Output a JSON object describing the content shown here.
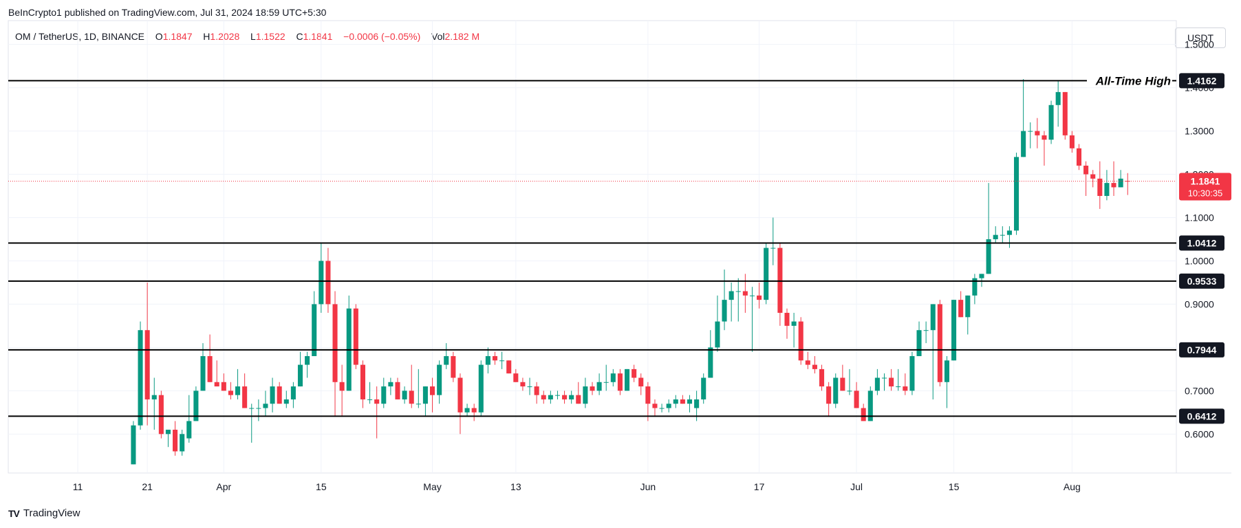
{
  "header": {
    "publisher": "BeInCrypto1 published on TradingView.com, Jul 31, 2024 18:59 UTC+5:30"
  },
  "legend": {
    "symbol": "OM / TetherUS, 1D, BINANCE",
    "o_label": "O",
    "o_value": "1.1847",
    "h_label": "H",
    "h_value": "1.2028",
    "l_label": "L",
    "l_value": "1.1522",
    "c_label": "C",
    "c_value": "1.1841",
    "change": "−0.0006 (−0.05%)",
    "vol_label": "Vol",
    "vol_value": "2.182 M"
  },
  "currency_button": "USDT",
  "footer": {
    "brand": "TradingView",
    "logo": "TV"
  },
  "colors": {
    "up": "#089981",
    "down": "#f23645",
    "level_line": "#000000",
    "grid": "#f0f3fa",
    "axis_text": "#131722",
    "label_bg": "#131722",
    "last_price_bg": "#f23645"
  },
  "chart_data": {
    "type": "candlestick",
    "y_ticks": [
      "1.5000",
      "1.4000",
      "1.3000",
      "1.2000",
      "1.1000",
      "1.0000",
      "0.9000",
      "0.8000",
      "0.7000",
      "0.6000"
    ],
    "x_ticks": [
      {
        "label": "11",
        "date": "2024-03-11"
      },
      {
        "label": "21",
        "date": "2024-03-21"
      },
      {
        "label": "Apr",
        "date": "2024-04-01"
      },
      {
        "label": "15",
        "date": "2024-04-15"
      },
      {
        "label": "May",
        "date": "2024-05-01"
      },
      {
        "label": "13",
        "date": "2024-05-13"
      },
      {
        "label": "Jun",
        "date": "2024-06-01"
      },
      {
        "label": "17",
        "date": "2024-06-17"
      },
      {
        "label": "Jul",
        "date": "2024-07-01"
      },
      {
        "label": "15",
        "date": "2024-07-15"
      },
      {
        "label": "Aug",
        "date": "2024-08-01"
      }
    ],
    "x_range": [
      "2024-03-01",
      "2024-08-16"
    ],
    "y_range": [
      0.51,
      1.555
    ],
    "levels": [
      {
        "value": 1.4162,
        "label": "1.4162",
        "annotation": "All-Time High"
      },
      {
        "value": 1.0412,
        "label": "1.0412"
      },
      {
        "value": 0.9533,
        "label": "0.9533"
      },
      {
        "value": 0.7944,
        "label": "0.7944"
      },
      {
        "value": 0.6412,
        "label": "0.6412"
      }
    ],
    "last_price": {
      "value": 1.1841,
      "label": "1.1841",
      "countdown": "10:30:35"
    },
    "candles": [
      {
        "d": "2024-03-19",
        "o": 0.53,
        "h": 0.63,
        "l": 0.53,
        "c": 0.62
      },
      {
        "d": "2024-03-20",
        "o": 0.62,
        "h": 0.86,
        "l": 0.61,
        "c": 0.84
      },
      {
        "d": "2024-03-21",
        "o": 0.84,
        "h": 0.95,
        "l": 0.62,
        "c": 0.68
      },
      {
        "d": "2024-03-22",
        "o": 0.68,
        "h": 0.73,
        "l": 0.61,
        "c": 0.69
      },
      {
        "d": "2024-03-23",
        "o": 0.69,
        "h": 0.7,
        "l": 0.59,
        "c": 0.6
      },
      {
        "d": "2024-03-24",
        "o": 0.6,
        "h": 0.61,
        "l": 0.57,
        "c": 0.61
      },
      {
        "d": "2024-03-25",
        "o": 0.61,
        "h": 0.63,
        "l": 0.55,
        "c": 0.56
      },
      {
        "d": "2024-03-26",
        "o": 0.56,
        "h": 0.61,
        "l": 0.55,
        "c": 0.6
      },
      {
        "d": "2024-03-27",
        "o": 0.59,
        "h": 0.69,
        "l": 0.58,
        "c": 0.63
      },
      {
        "d": "2024-03-28",
        "o": 0.63,
        "h": 0.71,
        "l": 0.63,
        "c": 0.7
      },
      {
        "d": "2024-03-29",
        "o": 0.7,
        "h": 0.81,
        "l": 0.7,
        "c": 0.78
      },
      {
        "d": "2024-03-30",
        "o": 0.78,
        "h": 0.83,
        "l": 0.72,
        "c": 0.72
      },
      {
        "d": "2024-03-31",
        "o": 0.72,
        "h": 0.77,
        "l": 0.71,
        "c": 0.71
      },
      {
        "d": "2024-04-01",
        "o": 0.72,
        "h": 0.74,
        "l": 0.7,
        "c": 0.7
      },
      {
        "d": "2024-04-02",
        "o": 0.7,
        "h": 0.72,
        "l": 0.68,
        "c": 0.69
      },
      {
        "d": "2024-04-03",
        "o": 0.69,
        "h": 0.75,
        "l": 0.68,
        "c": 0.71
      },
      {
        "d": "2024-04-04",
        "o": 0.71,
        "h": 0.74,
        "l": 0.66,
        "c": 0.66
      },
      {
        "d": "2024-04-05",
        "o": 0.66,
        "h": 0.67,
        "l": 0.58,
        "c": 0.66
      },
      {
        "d": "2024-04-06",
        "o": 0.66,
        "h": 0.68,
        "l": 0.63,
        "c": 0.66
      },
      {
        "d": "2024-04-07",
        "o": 0.66,
        "h": 0.7,
        "l": 0.64,
        "c": 0.67
      },
      {
        "d": "2024-04-08",
        "o": 0.67,
        "h": 0.73,
        "l": 0.65,
        "c": 0.71
      },
      {
        "d": "2024-04-09",
        "o": 0.71,
        "h": 0.72,
        "l": 0.67,
        "c": 0.67
      },
      {
        "d": "2024-04-10",
        "o": 0.67,
        "h": 0.7,
        "l": 0.66,
        "c": 0.68
      },
      {
        "d": "2024-04-11",
        "o": 0.68,
        "h": 0.72,
        "l": 0.66,
        "c": 0.71
      },
      {
        "d": "2024-04-12",
        "o": 0.71,
        "h": 0.79,
        "l": 0.71,
        "c": 0.76
      },
      {
        "d": "2024-04-13",
        "o": 0.76,
        "h": 0.79,
        "l": 0.73,
        "c": 0.78
      },
      {
        "d": "2024-04-14",
        "o": 0.78,
        "h": 0.93,
        "l": 0.78,
        "c": 0.9
      },
      {
        "d": "2024-04-15",
        "o": 0.9,
        "h": 1.04,
        "l": 0.88,
        "c": 1.0
      },
      {
        "d": "2024-04-16",
        "o": 1.0,
        "h": 1.03,
        "l": 0.88,
        "c": 0.9
      },
      {
        "d": "2024-04-17",
        "o": 0.9,
        "h": 0.93,
        "l": 0.64,
        "c": 0.72
      },
      {
        "d": "2024-04-18",
        "o": 0.72,
        "h": 0.76,
        "l": 0.64,
        "c": 0.7
      },
      {
        "d": "2024-04-19",
        "o": 0.7,
        "h": 0.92,
        "l": 0.7,
        "c": 0.89
      },
      {
        "d": "2024-04-20",
        "o": 0.89,
        "h": 0.9,
        "l": 0.75,
        "c": 0.76
      },
      {
        "d": "2024-04-21",
        "o": 0.76,
        "h": 0.77,
        "l": 0.66,
        "c": 0.68
      },
      {
        "d": "2024-04-22",
        "o": 0.68,
        "h": 0.72,
        "l": 0.67,
        "c": 0.68
      },
      {
        "d": "2024-04-23",
        "o": 0.68,
        "h": 0.71,
        "l": 0.59,
        "c": 0.67
      },
      {
        "d": "2024-04-24",
        "o": 0.67,
        "h": 0.73,
        "l": 0.66,
        "c": 0.71
      },
      {
        "d": "2024-04-25",
        "o": 0.71,
        "h": 0.73,
        "l": 0.69,
        "c": 0.72
      },
      {
        "d": "2024-04-26",
        "o": 0.72,
        "h": 0.73,
        "l": 0.68,
        "c": 0.68
      },
      {
        "d": "2024-04-27",
        "o": 0.68,
        "h": 0.71,
        "l": 0.67,
        "c": 0.7
      },
      {
        "d": "2024-04-28",
        "o": 0.7,
        "h": 0.76,
        "l": 0.66,
        "c": 0.67
      },
      {
        "d": "2024-04-29",
        "o": 0.67,
        "h": 0.75,
        "l": 0.66,
        "c": 0.67
      },
      {
        "d": "2024-04-30",
        "o": 0.67,
        "h": 0.71,
        "l": 0.64,
        "c": 0.71
      },
      {
        "d": "2024-05-01",
        "o": 0.71,
        "h": 0.73,
        "l": 0.65,
        "c": 0.69
      },
      {
        "d": "2024-05-02",
        "o": 0.69,
        "h": 0.77,
        "l": 0.67,
        "c": 0.76
      },
      {
        "d": "2024-05-03",
        "o": 0.76,
        "h": 0.81,
        "l": 0.75,
        "c": 0.78
      },
      {
        "d": "2024-05-04",
        "o": 0.78,
        "h": 0.79,
        "l": 0.72,
        "c": 0.73
      },
      {
        "d": "2024-05-05",
        "o": 0.73,
        "h": 0.74,
        "l": 0.6,
        "c": 0.65
      },
      {
        "d": "2024-05-06",
        "o": 0.65,
        "h": 0.67,
        "l": 0.64,
        "c": 0.66
      },
      {
        "d": "2024-05-07",
        "o": 0.66,
        "h": 0.67,
        "l": 0.63,
        "c": 0.65
      },
      {
        "d": "2024-05-08",
        "o": 0.65,
        "h": 0.77,
        "l": 0.64,
        "c": 0.76
      },
      {
        "d": "2024-05-09",
        "o": 0.76,
        "h": 0.8,
        "l": 0.74,
        "c": 0.78
      },
      {
        "d": "2024-05-10",
        "o": 0.78,
        "h": 0.79,
        "l": 0.76,
        "c": 0.77
      },
      {
        "d": "2024-05-11",
        "o": 0.77,
        "h": 0.79,
        "l": 0.75,
        "c": 0.77
      },
      {
        "d": "2024-05-12",
        "o": 0.77,
        "h": 0.77,
        "l": 0.74,
        "c": 0.74
      },
      {
        "d": "2024-05-13",
        "o": 0.74,
        "h": 0.75,
        "l": 0.72,
        "c": 0.72
      },
      {
        "d": "2024-05-14",
        "o": 0.72,
        "h": 0.73,
        "l": 0.7,
        "c": 0.71
      },
      {
        "d": "2024-05-15",
        "o": 0.71,
        "h": 0.73,
        "l": 0.69,
        "c": 0.71
      },
      {
        "d": "2024-05-16",
        "o": 0.71,
        "h": 0.72,
        "l": 0.67,
        "c": 0.69
      },
      {
        "d": "2024-05-17",
        "o": 0.69,
        "h": 0.7,
        "l": 0.67,
        "c": 0.68
      },
      {
        "d": "2024-05-18",
        "o": 0.68,
        "h": 0.7,
        "l": 0.67,
        "c": 0.69
      },
      {
        "d": "2024-05-19",
        "o": 0.69,
        "h": 0.7,
        "l": 0.68,
        "c": 0.69
      },
      {
        "d": "2024-05-20",
        "o": 0.69,
        "h": 0.7,
        "l": 0.67,
        "c": 0.68
      },
      {
        "d": "2024-05-21",
        "o": 0.68,
        "h": 0.7,
        "l": 0.67,
        "c": 0.69
      },
      {
        "d": "2024-05-22",
        "o": 0.69,
        "h": 0.72,
        "l": 0.67,
        "c": 0.67
      },
      {
        "d": "2024-05-23",
        "o": 0.67,
        "h": 0.73,
        "l": 0.66,
        "c": 0.71
      },
      {
        "d": "2024-05-24",
        "o": 0.71,
        "h": 0.72,
        "l": 0.69,
        "c": 0.7
      },
      {
        "d": "2024-05-25",
        "o": 0.7,
        "h": 0.74,
        "l": 0.69,
        "c": 0.72
      },
      {
        "d": "2024-05-26",
        "o": 0.72,
        "h": 0.76,
        "l": 0.7,
        "c": 0.72
      },
      {
        "d": "2024-05-27",
        "o": 0.72,
        "h": 0.75,
        "l": 0.71,
        "c": 0.74
      },
      {
        "d": "2024-05-28",
        "o": 0.74,
        "h": 0.75,
        "l": 0.69,
        "c": 0.7
      },
      {
        "d": "2024-05-29",
        "o": 0.7,
        "h": 0.75,
        "l": 0.7,
        "c": 0.75
      },
      {
        "d": "2024-05-30",
        "o": 0.75,
        "h": 0.76,
        "l": 0.72,
        "c": 0.73
      },
      {
        "d": "2024-05-31",
        "o": 0.73,
        "h": 0.74,
        "l": 0.69,
        "c": 0.71
      },
      {
        "d": "2024-06-01",
        "o": 0.71,
        "h": 0.72,
        "l": 0.63,
        "c": 0.67
      },
      {
        "d": "2024-06-02",
        "o": 0.67,
        "h": 0.68,
        "l": 0.64,
        "c": 0.66
      },
      {
        "d": "2024-06-03",
        "o": 0.66,
        "h": 0.67,
        "l": 0.65,
        "c": 0.66
      },
      {
        "d": "2024-06-04",
        "o": 0.66,
        "h": 0.68,
        "l": 0.65,
        "c": 0.67
      },
      {
        "d": "2024-06-05",
        "o": 0.67,
        "h": 0.69,
        "l": 0.66,
        "c": 0.68
      },
      {
        "d": "2024-06-06",
        "o": 0.68,
        "h": 0.69,
        "l": 0.67,
        "c": 0.67
      },
      {
        "d": "2024-06-07",
        "o": 0.67,
        "h": 0.69,
        "l": 0.65,
        "c": 0.68
      },
      {
        "d": "2024-06-08",
        "o": 0.66,
        "h": 0.7,
        "l": 0.63,
        "c": 0.68
      },
      {
        "d": "2024-06-09",
        "o": 0.68,
        "h": 0.74,
        "l": 0.67,
        "c": 0.73
      },
      {
        "d": "2024-06-10",
        "o": 0.73,
        "h": 0.84,
        "l": 0.73,
        "c": 0.8
      },
      {
        "d": "2024-06-11",
        "o": 0.8,
        "h": 0.92,
        "l": 0.79,
        "c": 0.86
      },
      {
        "d": "2024-06-12",
        "o": 0.86,
        "h": 0.98,
        "l": 0.84,
        "c": 0.91
      },
      {
        "d": "2024-06-13",
        "o": 0.91,
        "h": 0.95,
        "l": 0.86,
        "c": 0.93
      },
      {
        "d": "2024-06-14",
        "o": 0.93,
        "h": 0.96,
        "l": 0.86,
        "c": 0.93
      },
      {
        "d": "2024-06-15",
        "o": 0.93,
        "h": 0.97,
        "l": 0.88,
        "c": 0.92
      },
      {
        "d": "2024-06-16",
        "o": 0.92,
        "h": 0.94,
        "l": 0.79,
        "c": 0.92
      },
      {
        "d": "2024-06-17",
        "o": 0.92,
        "h": 0.95,
        "l": 0.89,
        "c": 0.91
      },
      {
        "d": "2024-06-18",
        "o": 0.91,
        "h": 1.04,
        "l": 0.9,
        "c": 1.03
      },
      {
        "d": "2024-06-19",
        "o": 1.03,
        "h": 1.1,
        "l": 0.99,
        "c": 1.03
      },
      {
        "d": "2024-06-20",
        "o": 1.03,
        "h": 1.04,
        "l": 0.85,
        "c": 0.88
      },
      {
        "d": "2024-06-21",
        "o": 0.88,
        "h": 0.89,
        "l": 0.82,
        "c": 0.85
      },
      {
        "d": "2024-06-22",
        "o": 0.85,
        "h": 0.88,
        "l": 0.8,
        "c": 0.86
      },
      {
        "d": "2024-06-23",
        "o": 0.86,
        "h": 0.87,
        "l": 0.76,
        "c": 0.77
      },
      {
        "d": "2024-06-24",
        "o": 0.77,
        "h": 0.79,
        "l": 0.75,
        "c": 0.76
      },
      {
        "d": "2024-06-25",
        "o": 0.76,
        "h": 0.78,
        "l": 0.74,
        "c": 0.75
      },
      {
        "d": "2024-06-26",
        "o": 0.75,
        "h": 0.76,
        "l": 0.7,
        "c": 0.71
      },
      {
        "d": "2024-06-27",
        "o": 0.71,
        "h": 0.72,
        "l": 0.64,
        "c": 0.67
      },
      {
        "d": "2024-06-28",
        "o": 0.67,
        "h": 0.74,
        "l": 0.66,
        "c": 0.73
      },
      {
        "d": "2024-06-29",
        "o": 0.73,
        "h": 0.76,
        "l": 0.7,
        "c": 0.7
      },
      {
        "d": "2024-06-30",
        "o": 0.7,
        "h": 0.75,
        "l": 0.69,
        "c": 0.7
      },
      {
        "d": "2024-07-01",
        "o": 0.7,
        "h": 0.72,
        "l": 0.66,
        "c": 0.66
      },
      {
        "d": "2024-07-02",
        "o": 0.66,
        "h": 0.67,
        "l": 0.63,
        "c": 0.63
      },
      {
        "d": "2024-07-03",
        "o": 0.63,
        "h": 0.71,
        "l": 0.63,
        "c": 0.7
      },
      {
        "d": "2024-07-04",
        "o": 0.7,
        "h": 0.75,
        "l": 0.69,
        "c": 0.73
      },
      {
        "d": "2024-07-05",
        "o": 0.73,
        "h": 0.74,
        "l": 0.7,
        "c": 0.73
      },
      {
        "d": "2024-07-06",
        "o": 0.73,
        "h": 0.75,
        "l": 0.7,
        "c": 0.71
      },
      {
        "d": "2024-07-07",
        "o": 0.71,
        "h": 0.75,
        "l": 0.7,
        "c": 0.71
      },
      {
        "d": "2024-07-08",
        "o": 0.71,
        "h": 0.74,
        "l": 0.69,
        "c": 0.7
      },
      {
        "d": "2024-07-09",
        "o": 0.7,
        "h": 0.79,
        "l": 0.69,
        "c": 0.78
      },
      {
        "d": "2024-07-10",
        "o": 0.78,
        "h": 0.86,
        "l": 0.78,
        "c": 0.84
      },
      {
        "d": "2024-07-11",
        "o": 0.84,
        "h": 0.86,
        "l": 0.81,
        "c": 0.84
      },
      {
        "d": "2024-07-12",
        "o": 0.84,
        "h": 0.9,
        "l": 0.68,
        "c": 0.9
      },
      {
        "d": "2024-07-13",
        "o": 0.9,
        "h": 0.91,
        "l": 0.71,
        "c": 0.72
      },
      {
        "d": "2024-07-14",
        "o": 0.72,
        "h": 0.78,
        "l": 0.66,
        "c": 0.77
      },
      {
        "d": "2024-07-15",
        "o": 0.77,
        "h": 0.91,
        "l": 0.77,
        "c": 0.91
      },
      {
        "d": "2024-07-16",
        "o": 0.91,
        "h": 0.93,
        "l": 0.87,
        "c": 0.87
      },
      {
        "d": "2024-07-17",
        "o": 0.87,
        "h": 0.92,
        "l": 0.83,
        "c": 0.92
      },
      {
        "d": "2024-07-18",
        "o": 0.92,
        "h": 0.97,
        "l": 0.9,
        "c": 0.96
      },
      {
        "d": "2024-07-19",
        "o": 0.96,
        "h": 0.97,
        "l": 0.94,
        "c": 0.97
      },
      {
        "d": "2024-07-20",
        "o": 0.97,
        "h": 1.18,
        "l": 0.97,
        "c": 1.05
      },
      {
        "d": "2024-07-21",
        "o": 1.05,
        "h": 1.08,
        "l": 1.04,
        "c": 1.06
      },
      {
        "d": "2024-07-22",
        "o": 1.06,
        "h": 1.08,
        "l": 1.04,
        "c": 1.06
      },
      {
        "d": "2024-07-23",
        "o": 1.06,
        "h": 1.08,
        "l": 1.03,
        "c": 1.07
      },
      {
        "d": "2024-07-24",
        "o": 1.07,
        "h": 1.25,
        "l": 1.06,
        "c": 1.24
      },
      {
        "d": "2024-07-25",
        "o": 1.24,
        "h": 1.42,
        "l": 1.24,
        "c": 1.3
      },
      {
        "d": "2024-07-26",
        "o": 1.3,
        "h": 1.32,
        "l": 1.26,
        "c": 1.3
      },
      {
        "d": "2024-07-27",
        "o": 1.3,
        "h": 1.33,
        "l": 1.26,
        "c": 1.29
      },
      {
        "d": "2024-07-28",
        "o": 1.29,
        "h": 1.3,
        "l": 1.22,
        "c": 1.28
      },
      {
        "d": "2024-07-29",
        "o": 1.28,
        "h": 1.37,
        "l": 1.27,
        "c": 1.36
      },
      {
        "d": "2024-07-30",
        "o": 1.36,
        "h": 1.4162,
        "l": 1.31,
        "c": 1.39
      },
      {
        "d": "2024-07-31",
        "o": 1.39,
        "h": 1.39,
        "l": 1.28,
        "c": 1.29
      },
      {
        "d": "2024-08-01",
        "o": 1.29,
        "h": 1.3,
        "l": 1.25,
        "c": 1.26
      },
      {
        "d": "2024-08-02",
        "o": 1.26,
        "h": 1.27,
        "l": 1.21,
        "c": 1.22
      },
      {
        "d": "2024-08-03",
        "o": 1.22,
        "h": 1.23,
        "l": 1.15,
        "c": 1.2
      },
      {
        "d": "2024-08-04",
        "o": 1.2,
        "h": 1.21,
        "l": 1.17,
        "c": 1.19
      },
      {
        "d": "2024-08-05",
        "o": 1.19,
        "h": 1.23,
        "l": 1.12,
        "c": 1.15
      },
      {
        "d": "2024-08-06",
        "o": 1.15,
        "h": 1.21,
        "l": 1.14,
        "c": 1.18
      },
      {
        "d": "2024-08-07",
        "o": 1.18,
        "h": 1.23,
        "l": 1.15,
        "c": 1.17
      },
      {
        "d": "2024-08-08",
        "o": 1.17,
        "h": 1.21,
        "l": 1.17,
        "c": 1.19
      },
      {
        "d": "2024-08-09",
        "o": 1.1847,
        "h": 1.2028,
        "l": 1.1522,
        "c": 1.1841
      }
    ]
  }
}
